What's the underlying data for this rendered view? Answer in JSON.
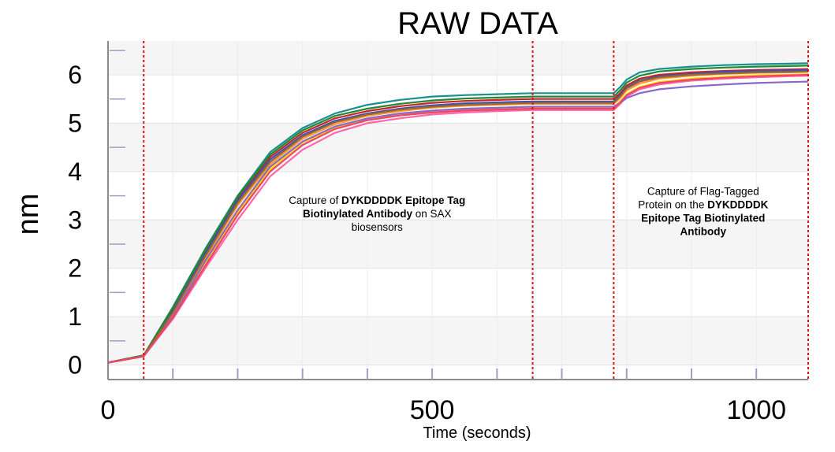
{
  "chart_data": {
    "type": "line",
    "title": "RAW DATA",
    "xlabel": "Time (seconds)",
    "ylabel": "nm",
    "xlim": [
      0,
      1080
    ],
    "ylim": [
      -0.3,
      6.7
    ],
    "x_ticks": [
      0,
      500,
      1000
    ],
    "y_ticks": [
      0,
      1,
      2,
      3,
      4,
      5,
      6
    ],
    "step_boundaries": [
      55,
      655,
      780,
      1080
    ],
    "grid": true,
    "legend": "none",
    "annotations": [
      {
        "lines": [
          [
            {
              "t": "Capture of ",
              "b": false
            },
            {
              "t": "DYKDDDDK Epitope Tag",
              "b": true
            }
          ],
          [
            {
              "t": "Biotinylated Antibody",
              "b": true
            },
            {
              "t": " on SAX",
              "b": false
            }
          ],
          [
            {
              "t": "biosensors",
              "b": false
            }
          ]
        ],
        "x": 415,
        "y": 3.05
      },
      {
        "lines": [
          [
            {
              "t": "Capture of Flag-Tagged",
              "b": false
            }
          ],
          [
            {
              "t": "Protein on the ",
              "b": false
            },
            {
              "t": "DYKDDDDK",
              "b": true
            }
          ],
          [
            {
              "t": "Epitope Tag Biotinylated",
              "b": true
            }
          ],
          [
            {
              "t": "Antibody",
              "b": true
            }
          ]
        ],
        "x": 918,
        "y": 3.1
      }
    ],
    "series": [
      {
        "color": "#1a8f8f",
        "x": [
          0,
          55,
          100,
          150,
          200,
          250,
          300,
          350,
          400,
          450,
          500,
          550,
          600,
          655,
          700,
          780,
          790,
          800,
          820,
          850,
          900,
          950,
          1000,
          1050,
          1080
        ],
        "y": [
          0.05,
          0.2,
          1.2,
          2.4,
          3.5,
          4.4,
          4.9,
          5.2,
          5.38,
          5.48,
          5.55,
          5.58,
          5.6,
          5.62,
          5.62,
          5.62,
          5.75,
          5.9,
          6.05,
          6.12,
          6.17,
          6.2,
          6.22,
          6.23,
          6.24
        ]
      },
      {
        "color": "#cc2222",
        "x": [
          0,
          55,
          100,
          150,
          200,
          250,
          300,
          350,
          400,
          450,
          500,
          550,
          600,
          655,
          700,
          780,
          790,
          800,
          820,
          850,
          900,
          950,
          1000,
          1050,
          1080
        ],
        "y": [
          0.05,
          0.2,
          1.15,
          2.35,
          3.45,
          4.3,
          4.8,
          5.1,
          5.25,
          5.35,
          5.42,
          5.46,
          5.48,
          5.5,
          5.5,
          5.5,
          5.62,
          5.78,
          5.92,
          6.0,
          6.05,
          6.08,
          6.1,
          6.11,
          6.12
        ]
      },
      {
        "color": "#ff66aa",
        "x": [
          0,
          55,
          100,
          150,
          200,
          250,
          300,
          350,
          400,
          450,
          500,
          550,
          600,
          655,
          700,
          780,
          790,
          800,
          820,
          850,
          900,
          950,
          1000,
          1050,
          1080
        ],
        "y": [
          0.05,
          0.18,
          0.95,
          2.0,
          3.0,
          3.9,
          4.45,
          4.8,
          5.0,
          5.1,
          5.18,
          5.22,
          5.25,
          5.27,
          5.27,
          5.27,
          5.4,
          5.55,
          5.7,
          5.8,
          5.88,
          5.92,
          5.95,
          5.97,
          5.98
        ]
      },
      {
        "color": "#ffdd00",
        "x": [
          0,
          55,
          100,
          150,
          200,
          250,
          300,
          350,
          400,
          450,
          500,
          550,
          600,
          655,
          700,
          780,
          790,
          800,
          820,
          850,
          900,
          950,
          1000,
          1050,
          1080
        ],
        "y": [
          0.05,
          0.18,
          1.0,
          2.1,
          3.15,
          4.05,
          4.6,
          4.9,
          5.08,
          5.18,
          5.25,
          5.28,
          5.3,
          5.32,
          5.32,
          5.32,
          5.45,
          5.6,
          5.75,
          5.85,
          5.92,
          5.96,
          5.99,
          6.0,
          6.01
        ]
      },
      {
        "color": "#3355bb",
        "x": [
          0,
          55,
          100,
          150,
          200,
          250,
          300,
          350,
          400,
          450,
          500,
          550,
          600,
          655,
          700,
          780,
          790,
          800,
          820,
          850,
          900,
          950,
          1000,
          1050,
          1080
        ],
        "y": [
          0.05,
          0.2,
          1.1,
          2.3,
          3.4,
          4.25,
          4.75,
          5.05,
          5.2,
          5.3,
          5.37,
          5.41,
          5.43,
          5.45,
          5.45,
          5.45,
          5.58,
          5.74,
          5.88,
          5.97,
          6.02,
          6.06,
          6.08,
          6.09,
          6.1
        ]
      },
      {
        "color": "#ff9933",
        "x": [
          0,
          55,
          100,
          150,
          200,
          250,
          300,
          350,
          400,
          450,
          500,
          550,
          600,
          655,
          700,
          780,
          790,
          800,
          820,
          850,
          900,
          950,
          1000,
          1050,
          1080
        ],
        "y": [
          0.05,
          0.19,
          1.05,
          2.2,
          3.3,
          4.15,
          4.68,
          4.98,
          5.15,
          5.25,
          5.32,
          5.36,
          5.38,
          5.4,
          5.4,
          5.4,
          5.52,
          5.68,
          5.82,
          5.92,
          5.98,
          6.02,
          6.04,
          6.05,
          6.06
        ]
      },
      {
        "color": "#8866cc",
        "x": [
          0,
          55,
          100,
          150,
          200,
          250,
          300,
          350,
          400,
          450,
          500,
          550,
          600,
          655,
          700,
          780,
          790,
          800,
          820,
          850,
          900,
          950,
          1000,
          1050,
          1080
        ],
        "y": [
          0.05,
          0.18,
          1.0,
          2.15,
          3.2,
          4.1,
          4.62,
          4.93,
          5.1,
          5.2,
          5.26,
          5.3,
          5.32,
          5.34,
          5.34,
          5.34,
          5.42,
          5.52,
          5.62,
          5.7,
          5.76,
          5.8,
          5.83,
          5.85,
          5.86
        ]
      },
      {
        "color": "#228833",
        "x": [
          0,
          55,
          100,
          150,
          200,
          250,
          300,
          350,
          400,
          450,
          500,
          550,
          600,
          655,
          700,
          780,
          790,
          800,
          820,
          850,
          900,
          950,
          1000,
          1050,
          1080
        ],
        "y": [
          0.05,
          0.2,
          1.18,
          2.38,
          3.48,
          4.35,
          4.85,
          5.15,
          5.3,
          5.4,
          5.47,
          5.51,
          5.53,
          5.55,
          5.55,
          5.55,
          5.68,
          5.84,
          5.98,
          6.07,
          6.12,
          6.15,
          6.17,
          6.18,
          6.19
        ]
      },
      {
        "color": "#996633",
        "x": [
          0,
          55,
          100,
          150,
          200,
          250,
          300,
          350,
          400,
          450,
          500,
          550,
          600,
          655,
          700,
          780,
          790,
          800,
          820,
          850,
          900,
          950,
          1000,
          1050,
          1080
        ],
        "y": [
          0.05,
          0.19,
          1.08,
          2.25,
          3.35,
          4.2,
          4.72,
          5.02,
          5.18,
          5.28,
          5.34,
          5.38,
          5.4,
          5.42,
          5.42,
          5.42,
          5.55,
          5.72,
          5.86,
          5.95,
          6.0,
          6.03,
          6.05,
          6.06,
          6.07
        ]
      },
      {
        "color": "#ee4466",
        "x": [
          0,
          55,
          100,
          150,
          200,
          250,
          300,
          350,
          400,
          450,
          500,
          550,
          600,
          655,
          700,
          780,
          790,
          800,
          820,
          850,
          900,
          950,
          1000,
          1050,
          1080
        ],
        "y": [
          0.05,
          0.18,
          0.98,
          2.05,
          3.1,
          4.0,
          4.55,
          4.88,
          5.06,
          5.16,
          5.22,
          5.26,
          5.28,
          5.3,
          5.3,
          5.3,
          5.43,
          5.58,
          5.73,
          5.83,
          5.9,
          5.94,
          5.97,
          5.99,
          6.0
        ]
      }
    ]
  }
}
